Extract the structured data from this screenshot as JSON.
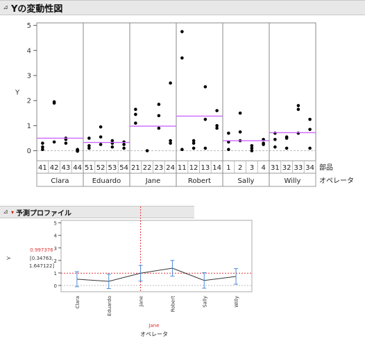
{
  "panel1": {
    "title": "Yの変動性図",
    "disclosure": "⊿"
  },
  "panel2": {
    "title": "予測プロファイル",
    "disclosure": "⊿",
    "menu": "▾"
  },
  "chart_data": [
    {
      "type": "variability",
      "ylabel": "Y",
      "ylim": [
        -0.4,
        5.1
      ],
      "yticks": [
        0,
        1,
        2,
        3,
        4,
        5
      ],
      "part_label": "部品",
      "operator_label": "オペレータ",
      "operators": [
        {
          "name": "Clara",
          "mean": 0.5,
          "parts": [
            {
              "part": "41",
              "values": [
                0.3,
                0.15,
                0.05
              ]
            },
            {
              "part": "42",
              "values": [
                1.95,
                1.9,
                0.35
              ]
            },
            {
              "part": "43",
              "values": [
                0.5,
                0.45,
                0.3
              ]
            },
            {
              "part": "44",
              "values": [
                0.05,
                -0.02,
                0.02
              ]
            }
          ]
        },
        {
          "name": "Eduardo",
          "mean": 0.33,
          "parts": [
            {
              "part": "51",
              "values": [
                0.5,
                0.2,
                0.1
              ]
            },
            {
              "part": "52",
              "values": [
                0.95,
                0.55,
                0.25
              ]
            },
            {
              "part": "53",
              "values": [
                0.4,
                0.3,
                0.15
              ]
            },
            {
              "part": "54",
              "values": [
                0.35,
                0.25,
                0.1
              ]
            }
          ]
        },
        {
          "name": "Jane",
          "mean": 0.98,
          "parts": [
            {
              "part": "21",
              "values": [
                1.65,
                1.45,
                1.1
              ]
            },
            {
              "part": "22",
              "values": [
                0.0
              ]
            },
            {
              "part": "23",
              "values": [
                1.85,
                1.4,
                0.9
              ]
            },
            {
              "part": "24",
              "values": [
                2.7,
                0.4,
                0.3
              ]
            }
          ]
        },
        {
          "name": "Robert",
          "mean": 1.38,
          "parts": [
            {
              "part": "11",
              "values": [
                4.75,
                3.7,
                0.05
              ]
            },
            {
              "part": "12",
              "values": [
                0.4,
                0.3,
                0.1
              ]
            },
            {
              "part": "13",
              "values": [
                2.55,
                1.25,
                0.1
              ]
            },
            {
              "part": "14",
              "values": [
                1.6,
                1.0,
                0.9
              ]
            }
          ]
        },
        {
          "name": "Sally",
          "mean": 0.4,
          "parts": [
            {
              "part": "1",
              "values": [
                0.7,
                0.35,
                0.05
              ]
            },
            {
              "part": "2",
              "values": [
                1.5,
                0.75,
                0.4
              ]
            },
            {
              "part": "3",
              "values": [
                0.2,
                0.1,
                0.0
              ]
            },
            {
              "part": "4",
              "values": [
                0.45,
                0.3,
                0.25
              ]
            }
          ]
        },
        {
          "name": "Willy",
          "mean": 0.72,
          "parts": [
            {
              "part": "31",
              "values": [
                0.7,
                0.45,
                0.15
              ]
            },
            {
              "part": "32",
              "values": [
                0.55,
                0.5,
                0.1
              ]
            },
            {
              "part": "33",
              "values": [
                1.8,
                1.65,
                0.7
              ]
            },
            {
              "part": "34",
              "values": [
                1.25,
                0.85,
                0.1
              ]
            }
          ]
        }
      ]
    },
    {
      "type": "profiler",
      "ylim": [
        -0.5,
        5.2
      ],
      "yticks": [
        0,
        1,
        2,
        3,
        4,
        5
      ],
      "categories": [
        "Clara",
        "Eduardo",
        "Jane",
        "Robert",
        "Sally",
        "Willy"
      ],
      "predicted": [
        0.5,
        0.33,
        0.98,
        1.38,
        0.4,
        0.72
      ],
      "lower": [
        -0.1,
        -0.25,
        0.35,
        0.75,
        -0.22,
        0.1
      ],
      "upper": [
        1.1,
        0.9,
        1.6,
        2.0,
        1.02,
        1.35
      ],
      "current_value": "0.997376",
      "current_ci": "[0.34763,",
      "current_ci2": "1.647122]",
      "current_level": "Jane",
      "current_level_index": 2,
      "xlabel": "オペレータ",
      "colors": {
        "mean_line": "#cc66ff",
        "error_bar": "#4a8ad8",
        "red": "#e03030"
      }
    }
  ]
}
